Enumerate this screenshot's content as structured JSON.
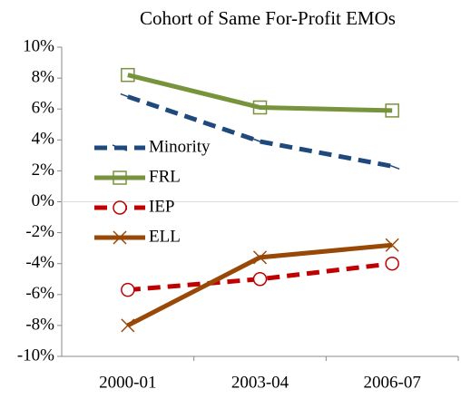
{
  "chart_data": {
    "type": "line",
    "title": "Cohort of Same For-Profit EMOs",
    "categories": [
      "2000-01",
      "2003-04",
      "2006-07"
    ],
    "series": [
      {
        "name": "Minority",
        "color": "#1f497d",
        "dashed": true,
        "marker": "dash",
        "values": [
          6.8,
          3.9,
          2.3
        ]
      },
      {
        "name": "FRL",
        "color": "#77933c",
        "dashed": false,
        "marker": "square",
        "values": [
          8.2,
          6.1,
          5.9
        ]
      },
      {
        "name": "IEP",
        "color": "#c00000",
        "dashed": true,
        "marker": "circle",
        "values": [
          -5.7,
          -5.0,
          -4.0
        ]
      },
      {
        "name": "ELL",
        "color": "#984807",
        "dashed": false,
        "marker": "x",
        "values": [
          -8.0,
          -3.6,
          -2.8
        ]
      }
    ],
    "ylim": [
      -10,
      10
    ],
    "yticks": [
      {
        "value": -10,
        "label": "-10%"
      },
      {
        "value": -8,
        "label": "-8%"
      },
      {
        "value": -6,
        "label": "-6%"
      },
      {
        "value": -4,
        "label": "-4%"
      },
      {
        "value": -2,
        "label": "-2%"
      },
      {
        "value": 0,
        "label": "0%"
      },
      {
        "value": 2,
        "label": "2%"
      },
      {
        "value": 4,
        "label": "4%"
      },
      {
        "value": 6,
        "label": "6%"
      },
      {
        "value": 8,
        "label": "8%"
      },
      {
        "value": 10,
        "label": "10%"
      }
    ],
    "legend": "left",
    "grid": false
  }
}
